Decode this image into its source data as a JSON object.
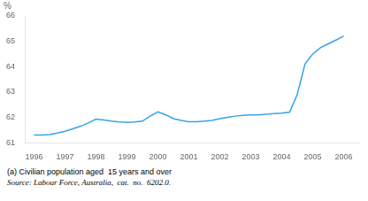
{
  "chart_data": {
    "type": "line",
    "x": [
      1996,
      1996.25,
      1996.5,
      1996.75,
      1997,
      1997.25,
      1997.5,
      1997.75,
      1998,
      1998.25,
      1998.5,
      1998.75,
      1999,
      1999.25,
      1999.5,
      1999.75,
      2000,
      2000.25,
      2000.5,
      2000.75,
      2001,
      2001.25,
      2001.5,
      2001.75,
      2002,
      2002.25,
      2002.5,
      2002.75,
      2003,
      2003.25,
      2003.5,
      2003.75,
      2004,
      2004.25,
      2004.5,
      2004.75,
      2005,
      2005.25,
      2005.5,
      2005.75,
      2006
    ],
    "values": [
      61.3,
      61.3,
      61.32,
      61.38,
      61.45,
      61.55,
      61.65,
      61.78,
      61.93,
      61.9,
      61.85,
      61.82,
      61.8,
      61.82,
      61.85,
      62.05,
      62.22,
      62.1,
      61.95,
      61.88,
      61.83,
      61.83,
      61.85,
      61.88,
      61.95,
      62.0,
      62.05,
      62.08,
      62.1,
      62.1,
      62.12,
      62.15,
      62.17,
      62.2,
      62.9,
      64.1,
      64.5,
      64.75,
      64.9,
      65.05,
      65.2
    ],
    "xlim": [
      1995.7,
      2006.5
    ],
    "ylim": [
      61,
      66
    ],
    "xticks": [
      1996,
      1997,
      1998,
      1999,
      2000,
      2001,
      2002,
      2003,
      2004,
      2005,
      2006
    ],
    "yticks": [
      61,
      62,
      63,
      64,
      65,
      66
    ],
    "ylabel": "%",
    "annotations": [
      "(a) Civilian population aged  15 years and over",
      "Source: Labour Force, Australia,  cat.  no.  6202.0."
    ],
    "grid": false
  }
}
